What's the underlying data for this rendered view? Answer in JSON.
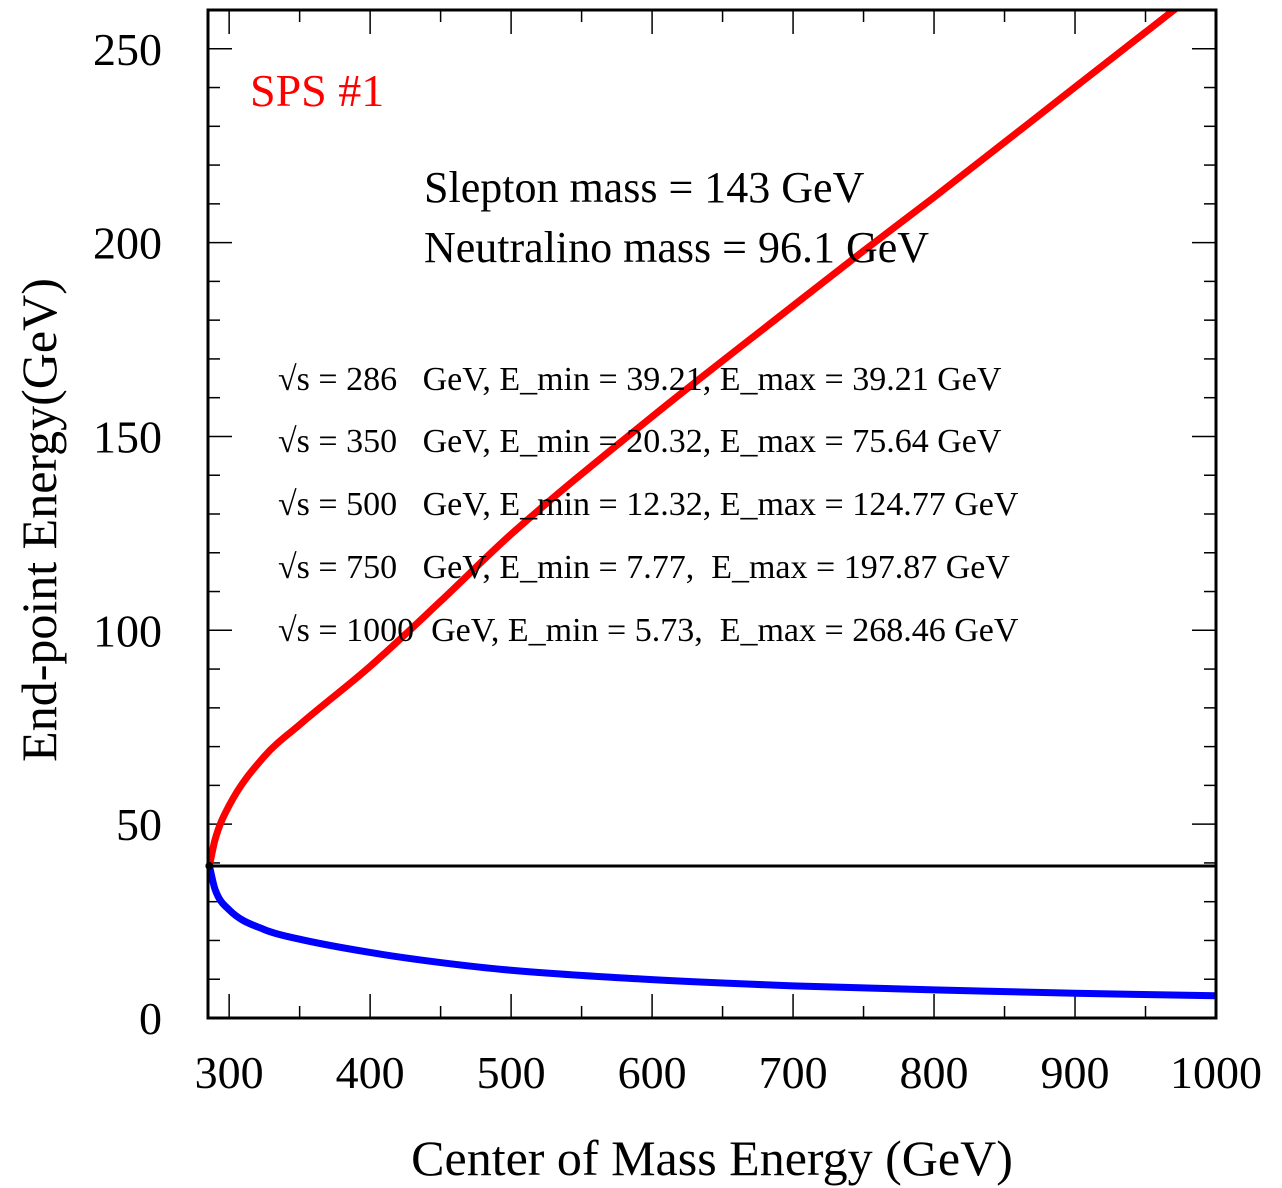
{
  "chart_data": {
    "type": "line",
    "xlabel": "Center of Mass Energy (GeV)",
    "ylabel": "End-point Energy(GeV)",
    "xlim": [
      285,
      1000
    ],
    "ylim": [
      0,
      260
    ],
    "x_ticks": [
      300,
      400,
      500,
      600,
      700,
      800,
      900,
      1000
    ],
    "y_ticks": [
      0,
      50,
      100,
      150,
      200,
      250
    ],
    "grid": false,
    "reference_line_y": 39.21,
    "annotations": {
      "label": "SPS #1",
      "masses": [
        "Slepton mass = 143 GeV",
        "Neutralino mass = 96.1 GeV"
      ],
      "rows": [
        "√s = 286   GeV, E_min = 39.21, E_max = 39.21 GeV",
        "√s = 350   GeV, E_min = 20.32, E_max = 75.64 GeV",
        "√s = 500   GeV, E_min = 12.32, E_max = 124.77 GeV",
        "√s = 750   GeV, E_min = 7.77,  E_max = 197.87 GeV",
        "√s = 1000  GeV, E_min = 5.73,  E_max = 268.46 GeV"
      ]
    },
    "series": [
      {
        "color": "#ff0000",
        "x": [
          286,
          290,
          300,
          325,
          350,
          400,
          450,
          500,
          600,
          700,
          750,
          800,
          900,
          1000
        ],
        "y": [
          39.21,
          46.0,
          54.8,
          67.5,
          75.64,
          90.7,
          107.5,
          124.77,
          155.1,
          183.7,
          197.87,
          211.7,
          240.1,
          268.46
        ]
      },
      {
        "color": "#0000ff",
        "x": [
          286,
          290,
          300,
          325,
          350,
          400,
          450,
          500,
          600,
          700,
          750,
          800,
          900,
          1000
        ],
        "y": [
          39.21,
          33.2,
          27.9,
          22.8,
          20.32,
          16.9,
          14.3,
          12.32,
          9.9,
          8.3,
          7.77,
          7.25,
          6.4,
          5.73
        ]
      }
    ]
  }
}
